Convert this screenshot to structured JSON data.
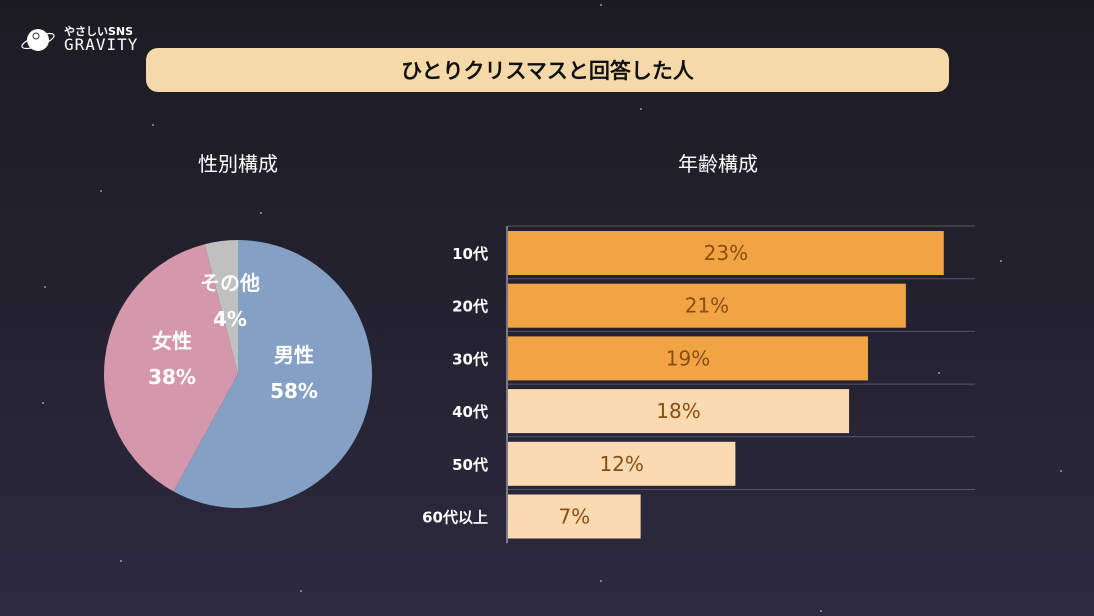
{
  "logo": {
    "subtitle": "やさしいSNS",
    "name": "GRAVITY"
  },
  "title": "ひとりクリスマスと回答した人",
  "colors": {
    "title_bg": "#f5d9a8",
    "male": "#84a0c4",
    "female": "#d497ab",
    "other": "#c0c0c0",
    "bar_dark": "#f0a444",
    "bar_light": "#fbdab1",
    "bar_label": "#8a4d12"
  },
  "chart_data": [
    {
      "type": "pie",
      "title": "性別構成",
      "slices": [
        {
          "label": "男性",
          "value": 58,
          "display": "58%",
          "color": "#84a0c4"
        },
        {
          "label": "女性",
          "value": 38,
          "display": "38%",
          "color": "#d497ab"
        },
        {
          "label": "その他",
          "value": 4,
          "display": "4%",
          "color": "#c0c0c0"
        }
      ],
      "start": "top",
      "direction": "clockwise"
    },
    {
      "type": "bar",
      "orientation": "horizontal",
      "title": "年齢構成",
      "categories": [
        "10代",
        "20代",
        "30代",
        "40代",
        "50代",
        "60代以上"
      ],
      "values": [
        23,
        21,
        19,
        18,
        12,
        7
      ],
      "labels": [
        "23%",
        "21%",
        "19%",
        "18%",
        "12%",
        "7%"
      ],
      "colors": [
        "#f0a444",
        "#f0a444",
        "#f0a444",
        "#fbdab1",
        "#fbdab1",
        "#fbdab1"
      ],
      "xlim": [
        0,
        24.7
      ],
      "grid": true
    }
  ]
}
